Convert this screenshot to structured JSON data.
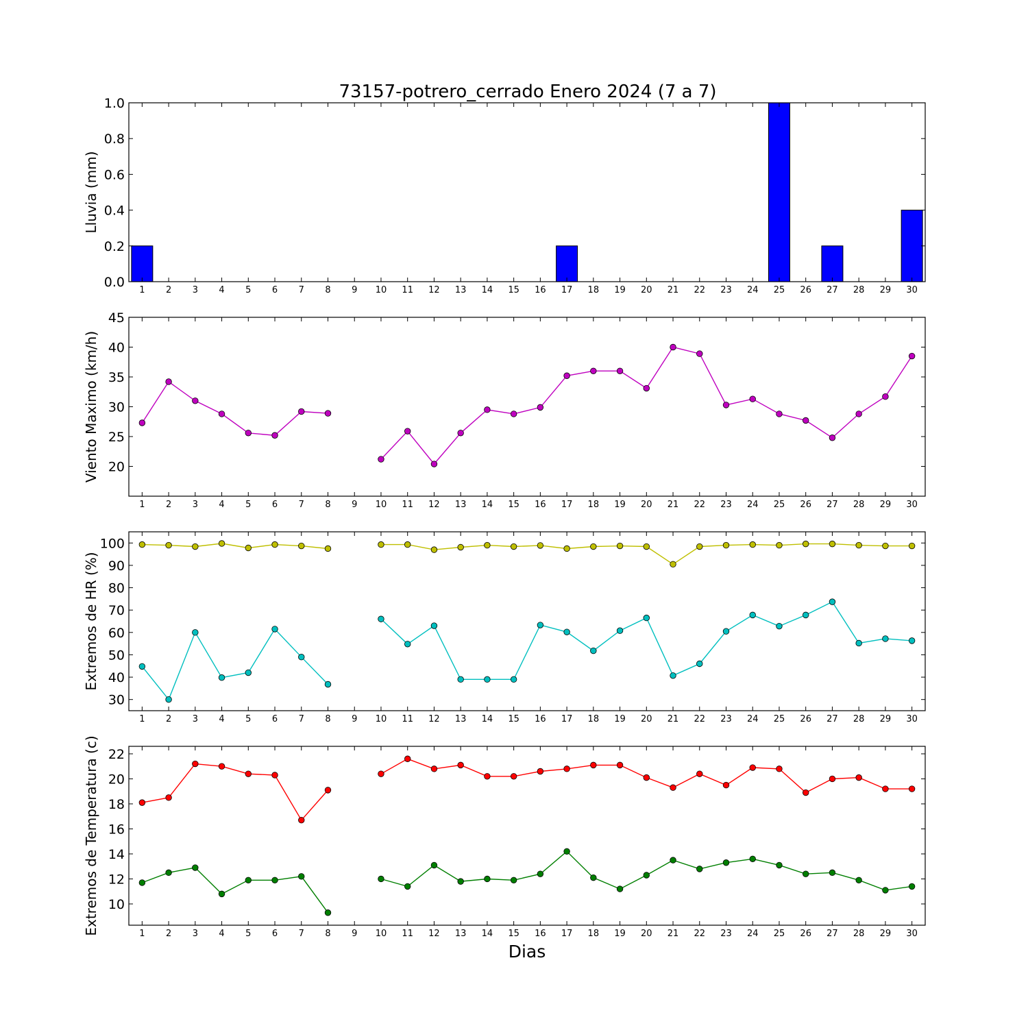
{
  "figure": {
    "title": "73157-potrero_cerrado Enero 2024  (7 a 7)",
    "xlabel": "Dias"
  },
  "chart_data": [
    {
      "type": "bar",
      "ylabel": "Lluvia (mm)",
      "ylim": [
        0,
        1.0
      ],
      "yticks": [
        0.0,
        0.2,
        0.4,
        0.6,
        0.8,
        1.0
      ],
      "ytick_labels": [
        "0.0",
        "0.2",
        "0.4",
        "0.6",
        "0.8",
        "1.0"
      ],
      "xlim": [
        0.5,
        30.5
      ],
      "xticks": [
        1,
        2,
        3,
        4,
        5,
        6,
        7,
        8,
        9,
        10,
        11,
        12,
        13,
        14,
        15,
        16,
        17,
        18,
        19,
        20,
        21,
        22,
        23,
        24,
        25,
        26,
        27,
        28,
        29,
        30
      ],
      "x": [
        1,
        2,
        3,
        4,
        5,
        6,
        7,
        8,
        9,
        10,
        11,
        12,
        13,
        14,
        15,
        16,
        17,
        18,
        19,
        20,
        21,
        22,
        23,
        24,
        25,
        26,
        27,
        28,
        29,
        30
      ],
      "series": [
        {
          "color": "#0000ff",
          "values": [
            0.2,
            0,
            0,
            0,
            0,
            0,
            0,
            0,
            null,
            0,
            0,
            0,
            0,
            0,
            0,
            0,
            0.2,
            0,
            0,
            0,
            0,
            0,
            0,
            0,
            1.0,
            0,
            0.2,
            0,
            0,
            0.4
          ]
        }
      ]
    },
    {
      "type": "line",
      "ylabel": "Viento Maximo (km/h)",
      "ylim": [
        15,
        45
      ],
      "yticks": [
        20,
        25,
        30,
        35,
        40,
        45
      ],
      "ytick_labels": [
        "20",
        "25",
        "30",
        "35",
        "40",
        "45"
      ],
      "xlim": [
        0.5,
        30.5
      ],
      "xticks": [
        1,
        2,
        3,
        4,
        5,
        6,
        7,
        8,
        9,
        10,
        11,
        12,
        13,
        14,
        15,
        16,
        17,
        18,
        19,
        20,
        21,
        22,
        23,
        24,
        25,
        26,
        27,
        28,
        29,
        30
      ],
      "x": [
        1,
        2,
        3,
        4,
        5,
        6,
        7,
        8,
        9,
        10,
        11,
        12,
        13,
        14,
        15,
        16,
        17,
        18,
        19,
        20,
        21,
        22,
        23,
        24,
        25,
        26,
        27,
        28,
        29,
        30
      ],
      "series": [
        {
          "color": "#bf00bf",
          "values": [
            27.3,
            34.2,
            31.0,
            28.8,
            25.6,
            25.2,
            29.2,
            28.9,
            null,
            21.2,
            25.9,
            20.4,
            25.6,
            29.5,
            28.8,
            29.9,
            35.2,
            36.0,
            36.0,
            33.1,
            40.0,
            38.9,
            30.3,
            31.3,
            28.8,
            27.7,
            24.8,
            28.8,
            31.7,
            38.5
          ]
        }
      ]
    },
    {
      "type": "line",
      "ylabel": "Extremos de HR (%)",
      "ylim": [
        25,
        105
      ],
      "yticks": [
        30,
        40,
        50,
        60,
        70,
        80,
        90,
        100
      ],
      "ytick_labels": [
        "30",
        "40",
        "50",
        "60",
        "70",
        "80",
        "90",
        "100"
      ],
      "xlim": [
        0.5,
        30.5
      ],
      "xticks": [
        1,
        2,
        3,
        4,
        5,
        6,
        7,
        8,
        9,
        10,
        11,
        12,
        13,
        14,
        15,
        16,
        17,
        18,
        19,
        20,
        21,
        22,
        23,
        24,
        25,
        26,
        27,
        28,
        29,
        30
      ],
      "x": [
        1,
        2,
        3,
        4,
        5,
        6,
        7,
        8,
        9,
        10,
        11,
        12,
        13,
        14,
        15,
        16,
        17,
        18,
        19,
        20,
        21,
        22,
        23,
        24,
        25,
        26,
        27,
        28,
        29,
        30
      ],
      "series": [
        {
          "color": "#bfbf00",
          "values": [
            99.3,
            99.0,
            98.4,
            99.8,
            97.8,
            99.3,
            98.7,
            97.5,
            null,
            99.3,
            99.3,
            97.0,
            98.1,
            99.0,
            98.4,
            98.9,
            97.5,
            98.4,
            98.7,
            98.4,
            90.5,
            98.4,
            99.0,
            99.3,
            99.0,
            99.6,
            99.6,
            99.0,
            98.7,
            98.7
          ]
        },
        {
          "color": "#00bfbf",
          "values": [
            44.8,
            30.0,
            60.0,
            39.8,
            42.0,
            61.5,
            49.0,
            36.8,
            null,
            66.0,
            54.8,
            63.0,
            39.0,
            39.0,
            39.0,
            63.3,
            60.2,
            51.8,
            60.8,
            66.5,
            40.7,
            46.0,
            60.5,
            67.8,
            62.8,
            67.8,
            73.7,
            55.2,
            57.2,
            56.3
          ]
        }
      ]
    },
    {
      "type": "line",
      "ylabel": "Extremos de Temperatura (c)",
      "ylim": [
        8.3,
        22.6
      ],
      "yticks": [
        10,
        12,
        14,
        16,
        18,
        20,
        22
      ],
      "ytick_labels": [
        "10",
        "12",
        "14",
        "16",
        "18",
        "20",
        "22"
      ],
      "xlim": [
        0.5,
        30.5
      ],
      "xticks": [
        1,
        2,
        3,
        4,
        5,
        6,
        7,
        8,
        9,
        10,
        11,
        12,
        13,
        14,
        15,
        16,
        17,
        18,
        19,
        20,
        21,
        22,
        23,
        24,
        25,
        26,
        27,
        28,
        29,
        30
      ],
      "x": [
        1,
        2,
        3,
        4,
        5,
        6,
        7,
        8,
        9,
        10,
        11,
        12,
        13,
        14,
        15,
        16,
        17,
        18,
        19,
        20,
        21,
        22,
        23,
        24,
        25,
        26,
        27,
        28,
        29,
        30
      ],
      "series": [
        {
          "color": "#ff0000",
          "values": [
            18.1,
            18.5,
            21.2,
            21.0,
            20.4,
            20.3,
            16.7,
            19.1,
            null,
            20.4,
            21.6,
            20.8,
            21.1,
            20.2,
            20.2,
            20.6,
            20.8,
            21.1,
            21.1,
            20.1,
            19.3,
            20.4,
            19.5,
            20.9,
            20.8,
            18.9,
            20.0,
            20.1,
            19.2,
            19.2
          ]
        },
        {
          "color": "#007f00",
          "values": [
            11.7,
            12.5,
            12.9,
            10.8,
            11.9,
            11.9,
            12.2,
            9.3,
            null,
            12.0,
            11.4,
            13.1,
            11.8,
            12.0,
            11.9,
            12.4,
            14.2,
            12.1,
            11.2,
            12.3,
            13.5,
            12.8,
            13.3,
            13.6,
            13.1,
            12.4,
            12.5,
            11.9,
            11.1,
            11.4
          ]
        }
      ]
    }
  ]
}
